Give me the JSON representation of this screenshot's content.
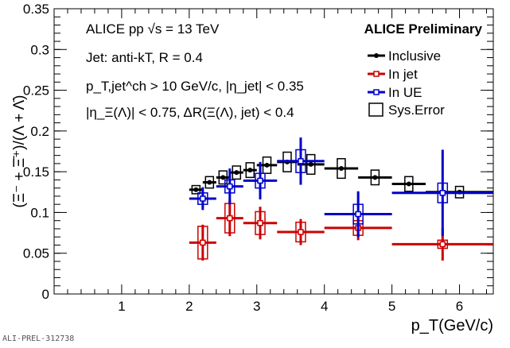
{
  "chart_data": {
    "type": "scatter",
    "xlabel": "p_T(GeV/c)",
    "ylabel": "(Ξ⁻ + Ξ̄⁺)/(Λ + Λ̄)",
    "xlim": [
      0,
      6.5
    ],
    "ylim": [
      0,
      0.35
    ],
    "xticks": [
      "1",
      "2",
      "3",
      "4",
      "5",
      "6"
    ],
    "yticks": [
      "0",
      "0.05",
      "0.1",
      "0.15",
      "0.2",
      "0.25",
      "0.3",
      "0.35"
    ],
    "annotations": [
      "ALICE pp √s = 13 TeV",
      "ALICE Preliminary",
      "Jet: anti-kT, R = 0.4",
      "p_T,jet^ch > 10 GeV/c, |η_jet| < 0.35",
      "|η_Ξ(Λ)| < 0.75, ΔR(Ξ(Λ), jet) < 0.4"
    ],
    "legend_position": "top-right",
    "legend": [
      "Inclusive",
      "In jet",
      "In UE",
      "Sys.Error"
    ],
    "series": [
      {
        "name": "Inclusive",
        "color": "#000000",
        "x": [
          2.1,
          2.3,
          2.5,
          2.7,
          2.9,
          3.15,
          3.45,
          3.8,
          4.25,
          4.75,
          5.25,
          6.0
        ],
        "xerr": [
          0.1,
          0.1,
          0.1,
          0.1,
          0.1,
          0.15,
          0.15,
          0.2,
          0.25,
          0.25,
          0.25,
          0.5
        ],
        "y": [
          0.128,
          0.137,
          0.143,
          0.149,
          0.152,
          0.158,
          0.162,
          0.159,
          0.154,
          0.143,
          0.135,
          0.125
        ],
        "stat": [
          0.002,
          0.002,
          0.002,
          0.002,
          0.002,
          0.002,
          0.002,
          0.002,
          0.002,
          0.002,
          0.002,
          0.002
        ],
        "sys": [
          0.005,
          0.007,
          0.008,
          0.008,
          0.009,
          0.01,
          0.012,
          0.012,
          0.012,
          0.009,
          0.009,
          0.007
        ]
      },
      {
        "name": "In jet",
        "color": "#cc0000",
        "x": [
          2.2,
          2.6,
          3.05,
          3.65,
          4.5,
          5.75
        ],
        "xerr": [
          0.2,
          0.2,
          0.25,
          0.35,
          0.5,
          0.75
        ],
        "y": [
          0.063,
          0.093,
          0.087,
          0.076,
          0.081,
          0.061
        ],
        "stat": [
          0.022,
          0.022,
          0.02,
          0.016,
          0.015,
          0.02
        ],
        "sys": [
          0.02,
          0.018,
          0.014,
          0.012,
          0.009,
          0.005
        ]
      },
      {
        "name": "In UE",
        "color": "#0000cc",
        "x": [
          2.2,
          2.6,
          3.05,
          3.65,
          4.5,
          5.75
        ],
        "xerr": [
          0.2,
          0.2,
          0.25,
          0.35,
          0.5,
          0.75
        ],
        "y": [
          0.117,
          0.132,
          0.139,
          0.163,
          0.098,
          0.124
        ],
        "stat": [
          0.014,
          0.022,
          0.023,
          0.029,
          0.028,
          0.053
        ],
        "sys": [
          0.007,
          0.008,
          0.009,
          0.014,
          0.012,
          0.012
        ]
      }
    ]
  },
  "footer": "ALI-PREL-312738"
}
